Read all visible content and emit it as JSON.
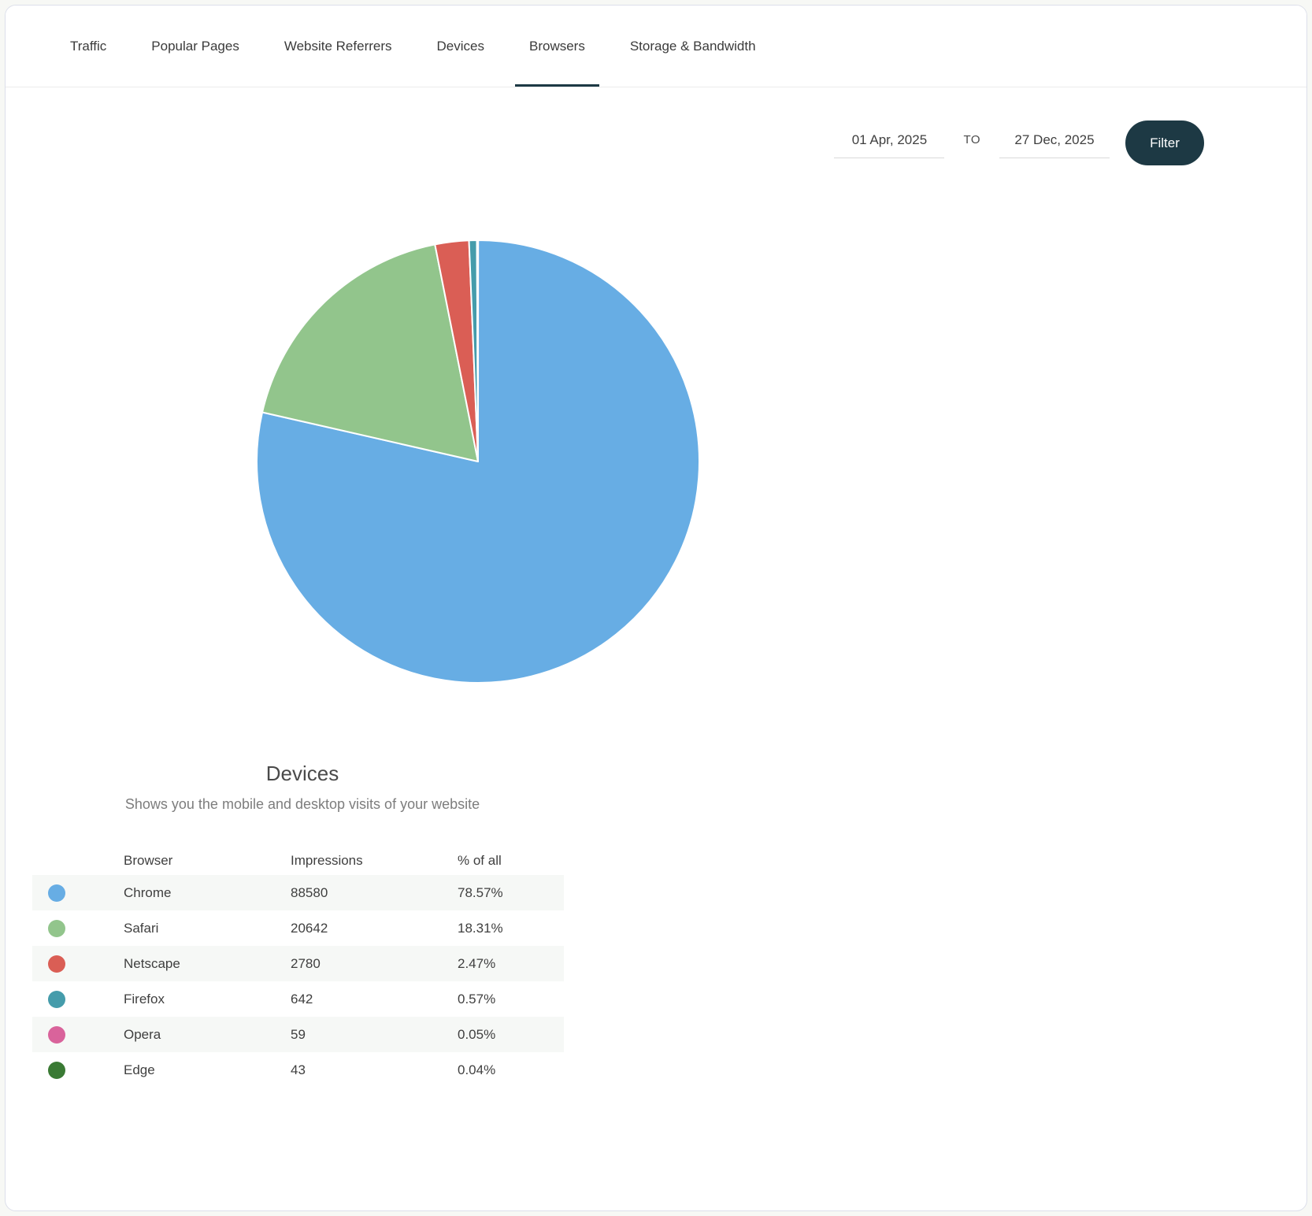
{
  "accent_color": "#1d3944",
  "tabs": {
    "items": [
      {
        "label": "Traffic",
        "active": false
      },
      {
        "label": "Popular Pages",
        "active": false
      },
      {
        "label": "Website Referrers",
        "active": false
      },
      {
        "label": "Devices",
        "active": false
      },
      {
        "label": "Browsers",
        "active": true
      },
      {
        "label": "Storage & Bandwidth",
        "active": false
      }
    ]
  },
  "filter": {
    "start_date": "01 Apr, 2025",
    "separator_label": "TO",
    "end_date": "27 Dec, 2025",
    "button_label": "Filter"
  },
  "summary": {
    "title": "Devices",
    "subtitle": "Shows you the mobile and desktop visits of your website"
  },
  "table": {
    "columns": [
      "Browser",
      "Impressions",
      "% of all"
    ]
  },
  "chart_data": {
    "type": "pie",
    "title": "Devices",
    "subtitle": "Shows you the mobile and desktop visits of your website",
    "categories": [
      "Chrome",
      "Safari",
      "Netscape",
      "Firefox",
      "Opera",
      "Edge"
    ],
    "values": [
      88580,
      20642,
      2780,
      642,
      59,
      43
    ],
    "percentages": [
      78.57,
      18.31,
      2.47,
      0.57,
      0.05,
      0.04
    ],
    "percent_labels": [
      "78.57%",
      "18.31%",
      "2.47%",
      "0.57%",
      "0.05%",
      "0.04%"
    ],
    "colors": [
      "#67ade4",
      "#92c58c",
      "#da5e55",
      "#459cab",
      "#d9639b",
      "#3a7a34"
    ],
    "start_angle_deg": -90,
    "direction": "clockwise",
    "slice_border_color": "#ffffff",
    "legend_position": "table-below-left"
  }
}
